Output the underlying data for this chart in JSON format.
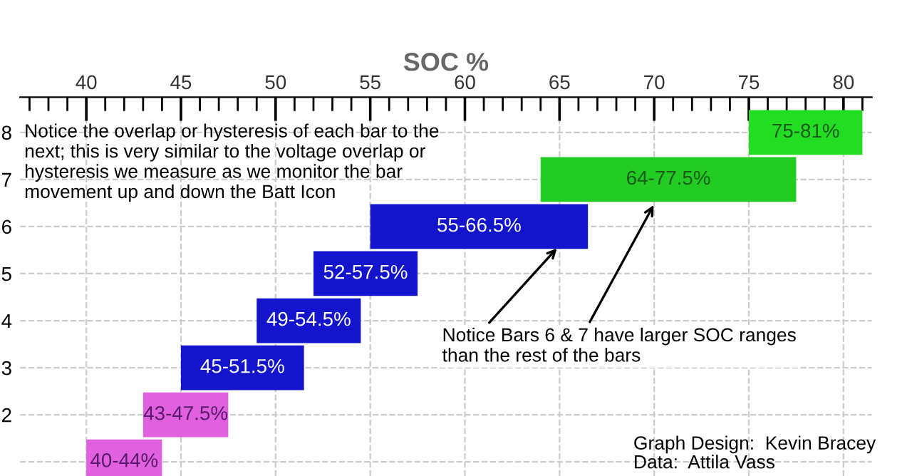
{
  "chart_data": {
    "type": "bar",
    "orientation": "horizontal",
    "xlabel": "SOC %",
    "categories": [
      "8",
      "7",
      "6",
      "5",
      "4",
      "3",
      "2",
      null
    ],
    "base": [
      75,
      64,
      55,
      52,
      49,
      45,
      43,
      40
    ],
    "values": [
      6,
      13.5,
      11.5,
      5.5,
      5.5,
      6.5,
      4.5,
      4
    ],
    "colors": [
      "#22dd22",
      "#22cc22",
      "#1414cc",
      "#1414cc",
      "#1414cc",
      "#1414cc",
      "#e060e0",
      "#e060e0"
    ],
    "xlim": [
      36.5,
      81.5
    ],
    "xticks": [
      40,
      45,
      50,
      55,
      60,
      65,
      70,
      75,
      80
    ],
    "grid": true,
    "annotations": [
      "Notice the overlap or hysteresis of each bar to the next; this is very similar to the voltage overlap or hysteresis we measure as we monitor the bar movement up and down the Batt Icon",
      {
        "text": "Notice Bars 6 & 7 have larger SOC ranges than the rest of the bars",
        "x": 65,
        "y": "6"
      },
      "Graph Design:  Kevin Bracey\nData:  Attila Vass",
      {
        "text": "75-81%",
        "x": 78,
        "y": "8"
      },
      {
        "text": "64-77.5%",
        "x": 70.75,
        "y": "7"
      },
      {
        "text": "55-66.5%",
        "x": 60.75,
        "y": "6"
      },
      {
        "text": "52-57.5%",
        "x": 54.75,
        "y": "5"
      },
      {
        "text": "49-54.5%",
        "x": 51.75,
        "y": "4"
      },
      {
        "text": "45-51.5%",
        "x": 48.25,
        "y": "3"
      },
      {
        "text": "43-47.5%",
        "x": 45.25,
        "y": "2"
      },
      "40-44%"
    ]
  }
}
